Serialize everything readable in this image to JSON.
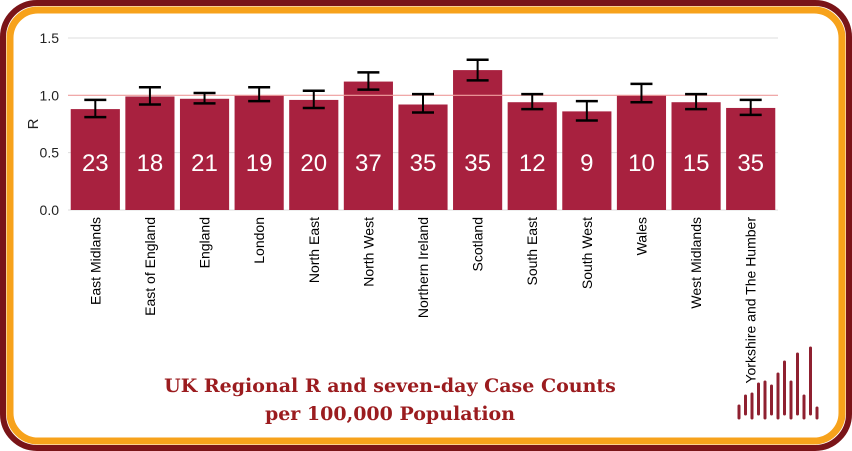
{
  "colors": {
    "outer_border": "#7a1418",
    "inner_border": "#f7a21b",
    "bar": "#a8213f",
    "value_text": "#ffffff",
    "title_text": "#9b1c1f",
    "ref_line": "#f2a0a0",
    "grid": "#dddddd",
    "error_bar": "#000000",
    "logo": "#8f2030"
  },
  "chart_data": {
    "type": "bar",
    "title_line1": "UK Regional R and seven-day Case Counts",
    "title_line2": "per 100,000 Population",
    "xlabel": "",
    "ylabel": "R",
    "ylim": [
      0,
      1.5
    ],
    "yticks": [
      "0.0",
      "0.5",
      "1.0",
      "1.5"
    ],
    "reference_line": 1.0,
    "categories": [
      "East Midlands",
      "East of England",
      "England",
      "London",
      "North East",
      "North West",
      "Northern Ireland",
      "Scotland",
      "South East",
      "South West",
      "Wales",
      "West Midlands",
      "Yorkshire and The Humber"
    ],
    "values": [
      0.88,
      0.99,
      0.97,
      1.0,
      0.96,
      1.12,
      0.92,
      1.22,
      0.94,
      0.86,
      1.0,
      0.94,
      0.89
    ],
    "error_low": [
      0.81,
      0.92,
      0.93,
      0.95,
      0.89,
      1.05,
      0.85,
      1.13,
      0.88,
      0.78,
      0.94,
      0.88,
      0.83
    ],
    "error_high": [
      0.96,
      1.07,
      1.02,
      1.07,
      1.04,
      1.2,
      1.01,
      1.31,
      1.01,
      0.95,
      1.1,
      1.01,
      0.96
    ],
    "case_counts": [
      "23",
      "18",
      "21",
      "19",
      "20",
      "37",
      "35",
      "35",
      "12",
      "9",
      "10",
      "15",
      "35"
    ],
    "grid": true
  }
}
